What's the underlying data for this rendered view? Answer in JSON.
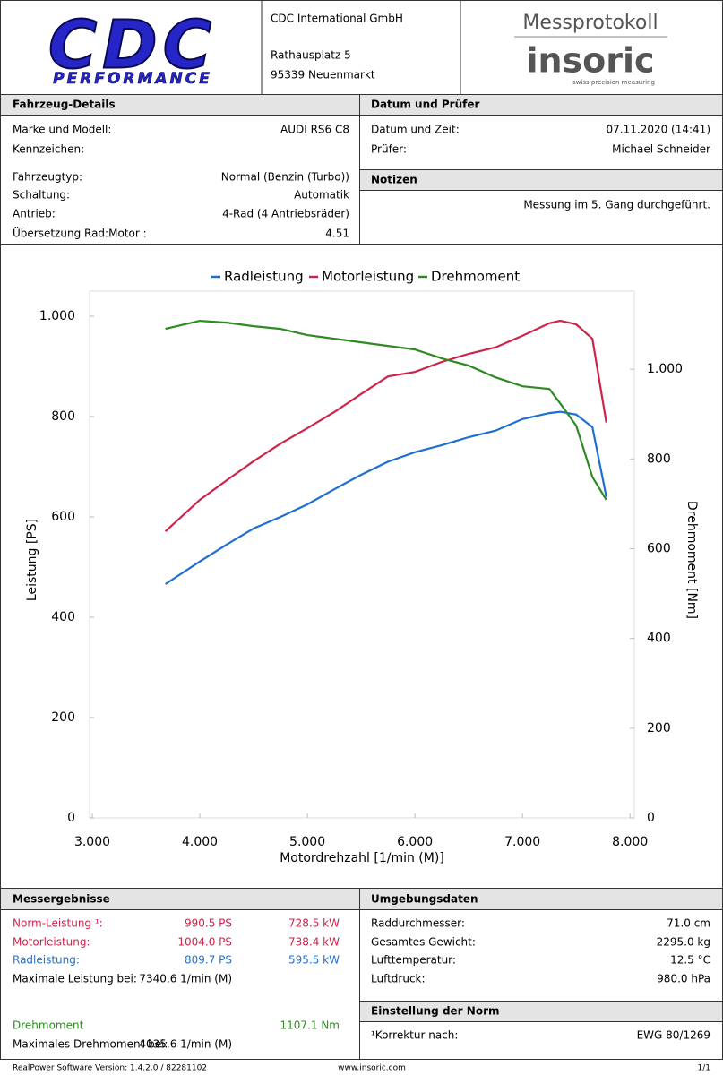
{
  "header": {
    "logo_main": "CDC",
    "logo_sub": "PERFORMANCE",
    "company": "CDC International GmbH",
    "street": "Rathausplatz 5",
    "city": "95339 Neuenmarkt",
    "protocol": "Messprotokoll",
    "brand": "insoric",
    "brand_tagline": "swiss precision measuring"
  },
  "vehicle": {
    "title": "Fahrzeug-Details",
    "rows": [
      [
        "Marke und Modell:",
        "AUDI RS6 C8"
      ],
      [
        "Kennzeichen:",
        null
      ],
      [
        "Fahrzeugtyp:",
        "Normal (Benzin (Turbo))"
      ],
      [
        "Schaltung:",
        "Automatik"
      ],
      [
        "Antrieb:",
        "4-Rad (4 Antriebsräder)"
      ],
      [
        "Übersetzung Rad:Motor :",
        "4.51"
      ]
    ]
  },
  "date": {
    "title": "Datum und Prüfer",
    "rows": [
      [
        "Datum und Zeit:",
        "07.11.2020 (14:41)"
      ],
      [
        "Prüfer:",
        "Michael Schneider"
      ]
    ]
  },
  "notes": {
    "title": "Notizen",
    "text": "Messung im 5. Gang durchgeführt."
  },
  "chart_data": {
    "type": "line",
    "x_label": "Motordrehzahl [1/min (M)]",
    "y_label": "Leistung [PS]",
    "y2_label": "Drehmoment [Nm]",
    "grid": false,
    "legend": "top",
    "x": [
      3680,
      4000,
      4250,
      4500,
      4750,
      5000,
      5250,
      5500,
      5750,
      6000,
      6250,
      6500,
      6750,
      7000,
      7250,
      7350,
      7500,
      7650,
      7780
    ],
    "series": [
      {
        "name": "Radleistung",
        "color": "#1f6fd1",
        "values": [
          466,
          511,
          545,
          577,
          600,
          625,
          655,
          684,
          710,
          729,
          743,
          759,
          772,
          795,
          807,
          809.7,
          804,
          779,
          640
        ]
      },
      {
        "name": "Motorleistung",
        "color": "#d0234a",
        "values": [
          571,
          634,
          673,
          711,
          746,
          777,
          809,
          845,
          880,
          889,
          909,
          925,
          938,
          961,
          986,
          991,
          984,
          955,
          788
        ]
      },
      {
        "name": "Drehmoment",
        "color": "#2e8b22",
        "axis": "y2",
        "values": [
          1090,
          1108,
          1104,
          1096,
          1090,
          1076,
          1068,
          1060,
          1052,
          1044,
          1024,
          1008,
          982,
          962,
          956,
          924,
          874,
          760,
          709
        ]
      }
    ],
    "xlim": [
      2975,
      8040
    ],
    "xticks": [
      {
        "value": 3000,
        "label": "3.000"
      },
      {
        "value": 4000,
        "label": "4.000"
      },
      {
        "value": 5000,
        "label": "5.000"
      },
      {
        "value": 6000,
        "label": "6.000"
      },
      {
        "value": 7000,
        "label": "7.000"
      },
      {
        "value": 8000,
        "label": "8.000"
      }
    ],
    "ylim": [
      0,
      1050
    ],
    "yticks": [
      0,
      200,
      400,
      600,
      800,
      {
        "value": 1000,
        "label": "1.000"
      }
    ],
    "y2lim": [
      0,
      1174
    ],
    "y2ticks": [
      0,
      200,
      400,
      600,
      800,
      {
        "value": 1000,
        "label": "1.000"
      }
    ]
  },
  "results": {
    "title": "Messergebnisse",
    "rows": [
      {
        "label": "Norm-Leistung ¹:",
        "ps": "990.5 PS",
        "kw": "728.5 kW",
        "color": "#d0234a"
      },
      {
        "label": "Motorleistung:",
        "ps": "1004.0 PS",
        "kw": "738.4 kW",
        "color": "#d0234a"
      },
      {
        "label": "Radleistung:",
        "ps": "809.7 PS",
        "kw": "595.5 kW",
        "color": "#1f6fd1"
      },
      {
        "label": "Maximale Leistung bei:",
        "ps": "7340.6 1/min (M)",
        "kw": null,
        "color": "#000000"
      },
      {
        "label": "Drehmoment",
        "ps": null,
        "kw": "1107.1 Nm",
        "color": "#2e8b22"
      },
      {
        "label": "Maximales Drehmoment bei:",
        "ps": "4035.6 1/min (M)",
        "kw": null,
        "color": "#000000"
      }
    ]
  },
  "environment": {
    "title": "Umgebungsdaten",
    "rows": [
      [
        "Raddurchmesser:",
        "71.0 cm"
      ],
      [
        "Gesamtes Gewicht:",
        "2295.0 kg"
      ],
      [
        "Lufttemperatur:",
        "12.5 °C"
      ],
      [
        "Luftdruck:",
        "980.0 hPa"
      ]
    ]
  },
  "norm": {
    "title": "Einstellung der Norm",
    "rows": [
      [
        "¹Korrektur nach:",
        "EWG 80/1269"
      ]
    ]
  },
  "footer": {
    "version": "RealPower Software Version: 1.4.2.0 / 82281102",
    "url": "www.insoric.com",
    "page": "1/1"
  }
}
